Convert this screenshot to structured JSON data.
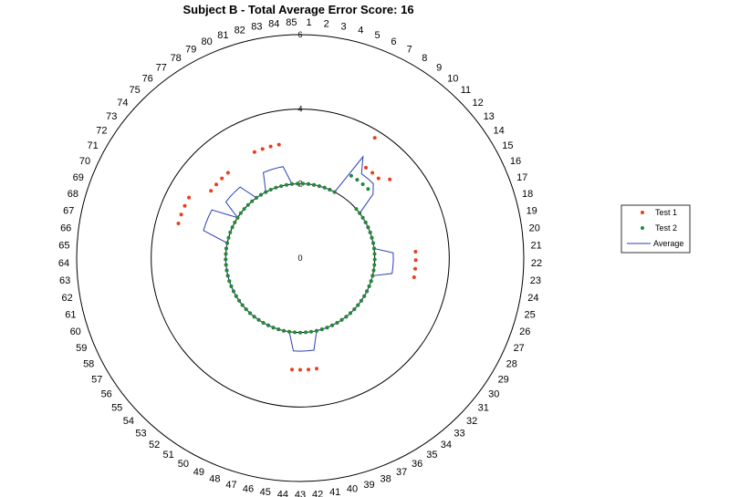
{
  "chart_data": {
    "type": "radar",
    "title": "Subject B - Total Average Error Score: 16",
    "categories": [
      "1",
      "2",
      "3",
      "4",
      "5",
      "6",
      "7",
      "8",
      "9",
      "10",
      "11",
      "12",
      "13",
      "14",
      "15",
      "16",
      "17",
      "18",
      "19",
      "20",
      "21",
      "22",
      "23",
      "24",
      "25",
      "26",
      "27",
      "28",
      "29",
      "30",
      "31",
      "32",
      "33",
      "34",
      "35",
      "36",
      "37",
      "38",
      "39",
      "40",
      "41",
      "42",
      "43",
      "44",
      "45",
      "46",
      "47",
      "48",
      "49",
      "50",
      "51",
      "52",
      "53",
      "54",
      "55",
      "56",
      "57",
      "58",
      "59",
      "60",
      "61",
      "62",
      "63",
      "64",
      "65",
      "66",
      "67",
      "68",
      "69",
      "70",
      "71",
      "72",
      "73",
      "74",
      "75",
      "76",
      "77",
      "78",
      "79",
      "80",
      "81",
      "82",
      "83",
      "84",
      "85"
    ],
    "radial_ticks": [
      "0",
      "2",
      "4",
      "6"
    ],
    "rlim": [
      0,
      6
    ],
    "grid": true,
    "legend": "right",
    "series": [
      {
        "name": "Test 1",
        "type": "scatter",
        "color": "#e8401c",
        "values": [
          2,
          2,
          2,
          2,
          2,
          2,
          2,
          3.8,
          3,
          3,
          3,
          3.2,
          2,
          2,
          2,
          2,
          2,
          2,
          2,
          2,
          3.1,
          3.1,
          3.1,
          3.1,
          2,
          2,
          2,
          2,
          2,
          2,
          2,
          2,
          2,
          2,
          2,
          2,
          2,
          2,
          2,
          2,
          3,
          3,
          3,
          3,
          2,
          2,
          2,
          2,
          2,
          2,
          2,
          2,
          2,
          2,
          2,
          2,
          2,
          2,
          2,
          2,
          2,
          2,
          2,
          2,
          2,
          2,
          2,
          3.4,
          3.4,
          3.4,
          3.4,
          2,
          3,
          3,
          3,
          3,
          2,
          2,
          2,
          3.1,
          3.1,
          3.1,
          3.1,
          2,
          2
        ]
      },
      {
        "name": "Test 2",
        "type": "scatter",
        "color": "#1f8a3a",
        "values": [
          2,
          2,
          2,
          2,
          2,
          2,
          2,
          2.6,
          2.6,
          2.6,
          2.6,
          2,
          2,
          2,
          2,
          2,
          2,
          2,
          2,
          2,
          2,
          2,
          2,
          2,
          2,
          2,
          2,
          2,
          2,
          2,
          2,
          2,
          2,
          2,
          2,
          2,
          2,
          2,
          2,
          2,
          2,
          2,
          2,
          2,
          2,
          2,
          2,
          2,
          2,
          2,
          2,
          2,
          2,
          2,
          2,
          2,
          2,
          2,
          2,
          2,
          2,
          2,
          2,
          2,
          2,
          2,
          2,
          2,
          2,
          2,
          2,
          2,
          2,
          2,
          2,
          2,
          2,
          2,
          2,
          2,
          2,
          2,
          2,
          2,
          2
        ]
      },
      {
        "name": "Average",
        "type": "line",
        "color": "#2a3fb5",
        "values": [
          2,
          2,
          2,
          2,
          2,
          2,
          2,
          3.2,
          2.8,
          2.8,
          2.8,
          2.6,
          2,
          2,
          2,
          2,
          2,
          2,
          2,
          2,
          2.5,
          2.5,
          2.5,
          2.5,
          2,
          2,
          2,
          2,
          2,
          2,
          2,
          2,
          2,
          2,
          2,
          2,
          2,
          2,
          2,
          2,
          2.5,
          2.5,
          2.5,
          2.5,
          2,
          2,
          2,
          2,
          2,
          2,
          2,
          2,
          2,
          2,
          2,
          2,
          2,
          2,
          2,
          2,
          2,
          2,
          2,
          2,
          2,
          2,
          2,
          2.7,
          2.7,
          2.7,
          2.7,
          2,
          2.5,
          2.5,
          2.5,
          2.5,
          2,
          2,
          2,
          2.5,
          2.5,
          2.5,
          2.5,
          2,
          2
        ]
      }
    ]
  }
}
